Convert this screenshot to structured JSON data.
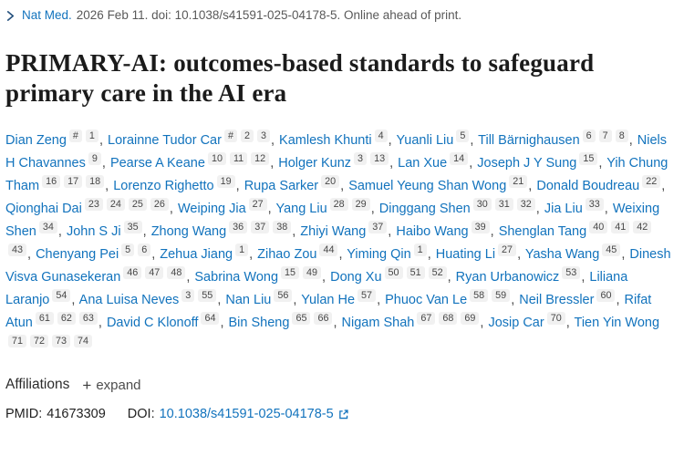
{
  "citation": {
    "journal": "Nat Med.",
    "details": "2026 Feb 11. doi: 10.1038/s41591-025-04178-5. Online ahead of print."
  },
  "title": "PRIMARY-AI: outcomes-based standards to safeguard primary care in the AI era",
  "authors": [
    {
      "name": "Dian Zeng",
      "sups": [
        "#",
        "1"
      ]
    },
    {
      "name": "Lorainne Tudor Car",
      "sups": [
        "#",
        "2",
        "3"
      ]
    },
    {
      "name": "Kamlesh Khunti",
      "sups": [
        "4"
      ]
    },
    {
      "name": "Yuanli Liu",
      "sups": [
        "5"
      ]
    },
    {
      "name": "Till Bärnighausen",
      "sups": [
        "6",
        "7",
        "8"
      ]
    },
    {
      "name": "Niels H Chavannes",
      "sups": [
        "9"
      ]
    },
    {
      "name": "Pearse A Keane",
      "sups": [
        "10",
        "11",
        "12"
      ]
    },
    {
      "name": "Holger Kunz",
      "sups": [
        "3",
        "13"
      ]
    },
    {
      "name": "Lan Xue",
      "sups": [
        "14"
      ]
    },
    {
      "name": "Joseph J Y Sung",
      "sups": [
        "15"
      ]
    },
    {
      "name": "Yih Chung Tham",
      "sups": [
        "16",
        "17",
        "18"
      ]
    },
    {
      "name": "Lorenzo Righetto",
      "sups": [
        "19"
      ]
    },
    {
      "name": "Rupa Sarker",
      "sups": [
        "20"
      ]
    },
    {
      "name": "Samuel Yeung Shan Wong",
      "sups": [
        "21"
      ]
    },
    {
      "name": "Donald Boudreau",
      "sups": [
        "22"
      ]
    },
    {
      "name": "Qionghai Dai",
      "sups": [
        "23",
        "24",
        "25",
        "26"
      ]
    },
    {
      "name": "Weiping Jia",
      "sups": [
        "27"
      ]
    },
    {
      "name": "Yang Liu",
      "sups": [
        "28",
        "29"
      ]
    },
    {
      "name": "Dinggang Shen",
      "sups": [
        "30",
        "31",
        "32"
      ]
    },
    {
      "name": "Jia Liu",
      "sups": [
        "33"
      ]
    },
    {
      "name": "Weixing Shen",
      "sups": [
        "34"
      ]
    },
    {
      "name": "John S Ji",
      "sups": [
        "35"
      ]
    },
    {
      "name": "Zhong Wang",
      "sups": [
        "36",
        "37",
        "38"
      ]
    },
    {
      "name": "Zhiyi Wang",
      "sups": [
        "37"
      ]
    },
    {
      "name": "Haibo Wang",
      "sups": [
        "39"
      ]
    },
    {
      "name": "Shenglan Tang",
      "sups": [
        "40",
        "41",
        "42",
        "43"
      ]
    },
    {
      "name": "Chenyang Pei",
      "sups": [
        "5",
        "6"
      ]
    },
    {
      "name": "Zehua Jiang",
      "sups": [
        "1"
      ]
    },
    {
      "name": "Zihao Zou",
      "sups": [
        "44"
      ]
    },
    {
      "name": "Yiming Qin",
      "sups": [
        "1"
      ]
    },
    {
      "name": "Huating Li",
      "sups": [
        "27"
      ]
    },
    {
      "name": "Yasha Wang",
      "sups": [
        "45"
      ]
    },
    {
      "name": "Dinesh Visva Gunasekeran",
      "sups": [
        "46",
        "47",
        "48"
      ]
    },
    {
      "name": "Sabrina Wong",
      "sups": [
        "15",
        "49"
      ]
    },
    {
      "name": "Dong Xu",
      "sups": [
        "50",
        "51",
        "52"
      ]
    },
    {
      "name": "Ryan Urbanowicz",
      "sups": [
        "53"
      ]
    },
    {
      "name": "Liliana Laranjo",
      "sups": [
        "54"
      ]
    },
    {
      "name": "Ana Luisa Neves",
      "sups": [
        "3",
        "55"
      ]
    },
    {
      "name": "Nan Liu",
      "sups": [
        "56"
      ]
    },
    {
      "name": "Yulan He",
      "sups": [
        "57"
      ]
    },
    {
      "name": "Phuoc Van Le",
      "sups": [
        "58",
        "59"
      ]
    },
    {
      "name": "Neil Bressler",
      "sups": [
        "60"
      ]
    },
    {
      "name": "Rifat Atun",
      "sups": [
        "61",
        "62",
        "63"
      ]
    },
    {
      "name": "David C Klonoff",
      "sups": [
        "64"
      ]
    },
    {
      "name": "Bin Sheng",
      "sups": [
        "65",
        "66"
      ]
    },
    {
      "name": "Nigam Shah",
      "sups": [
        "67",
        "68",
        "69"
      ]
    },
    {
      "name": "Josip Car",
      "sups": [
        "70"
      ]
    },
    {
      "name": "Tien Yin Wong",
      "sups": [
        "71",
        "72",
        "73",
        "74"
      ]
    }
  ],
  "affiliations": {
    "label": "Affiliations",
    "plus_icon": "+",
    "expand_label": "expand"
  },
  "identifiers": {
    "pmid_label": "PMID:",
    "pmid": "41673309",
    "doi_label": "DOI:",
    "doi": "10.1038/s41591-025-04178-5"
  },
  "colors": {
    "link_blue": "#1273bd",
    "citation_gray": "#595959",
    "title_color": "#1b1b1b",
    "superscript_bg": "#f1f1f1"
  },
  "icons": {
    "chevron": "chevron-right-icon",
    "plus": "plus-icon",
    "external": "external-link-icon"
  }
}
